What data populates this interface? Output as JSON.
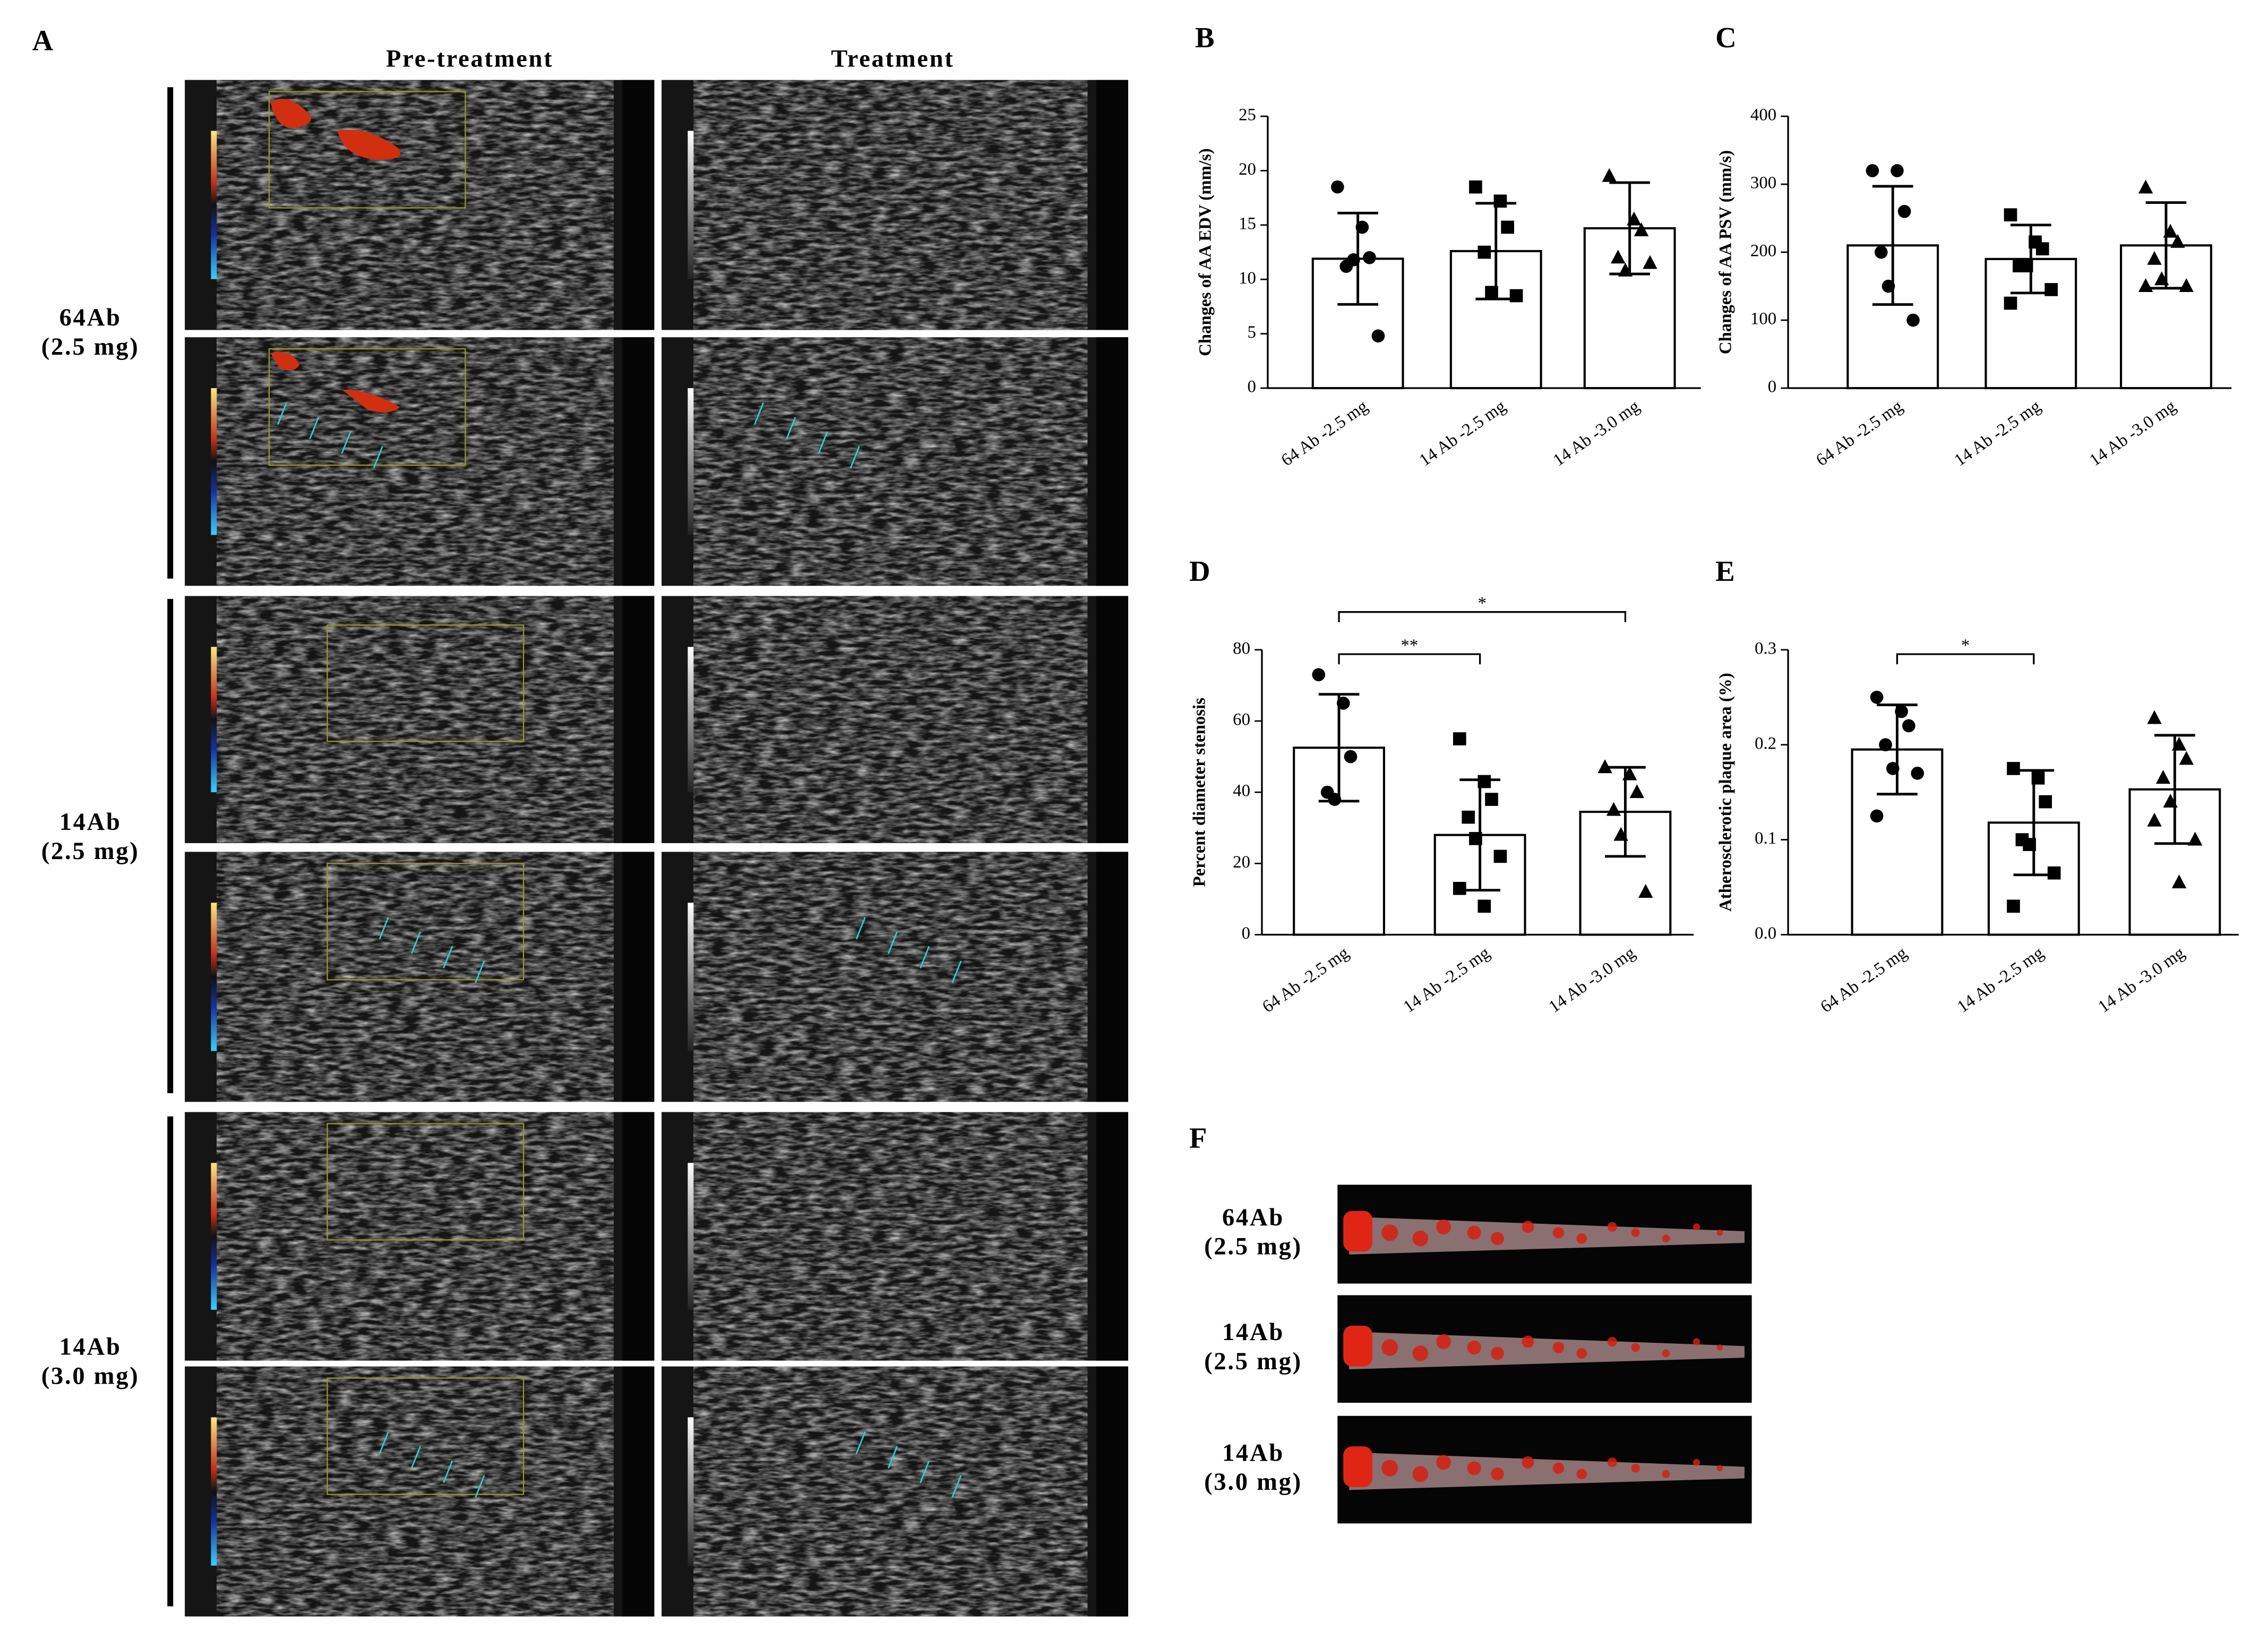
{
  "figure": {
    "panel_a": {
      "label": "A",
      "columns": [
        "Pre-treatment",
        "Treatment"
      ],
      "rows": [
        [
          "64Ab",
          "(2.5 mg)"
        ],
        [
          "14Ab",
          "(2.5 mg)"
        ],
        [
          "14Ab",
          "(3.0 mg)"
        ]
      ]
    },
    "panel_f": {
      "label": "F",
      "rows": [
        [
          "64Ab",
          "(2.5 mg)"
        ],
        [
          "14Ab",
          "(2.5 mg)"
        ],
        [
          "14Ab",
          "(3.0 mg)"
        ]
      ]
    }
  },
  "chart_data": [
    {
      "type": "bar",
      "panel": "B",
      "ylabel": "Changes of AA EDV (mm/s)",
      "categories": [
        "64 Ab -2.5 mg",
        "14 Ab -2.5 mg",
        "14 Ab -3.0 mg"
      ],
      "values": [
        11.9,
        12.6,
        14.7
      ],
      "errors": [
        4.2,
        4.4,
        4.2
      ],
      "points": [
        [
          18.5,
          14.8,
          12.0,
          11.2,
          11.8,
          4.8
        ],
        [
          18.5,
          17.2,
          14.8,
          12.5,
          8.8,
          8.5
        ],
        [
          19.5,
          15.5,
          14.5,
          12.0,
          10.8,
          11.5
        ]
      ],
      "ylim": [
        0,
        25
      ],
      "yticks": [
        0,
        5,
        10,
        15,
        20,
        25
      ]
    },
    {
      "type": "bar",
      "panel": "C",
      "ylabel": "Changes of AA PSV (mm/s)",
      "categories": [
        "64 Ab -2.5 mg",
        "14 Ab -2.5 mg",
        "14 Ab -3.0 mg"
      ],
      "values": [
        210,
        190,
        210
      ],
      "errors": [
        87,
        50,
        63
      ],
      "points": [
        [
          320,
          320,
          260,
          200,
          150,
          100
        ],
        [
          255,
          215,
          205,
          180,
          180,
          145,
          125
        ],
        [
          295,
          230,
          215,
          190,
          160,
          150,
          150
        ]
      ],
      "ylim": [
        0,
        400
      ],
      "yticks": [
        0,
        100,
        200,
        300,
        400
      ]
    },
    {
      "type": "bar",
      "panel": "D",
      "ylabel": "Percent diameter stenosis",
      "categories": [
        "64 Ab -2.5 mg",
        "14 Ab -2.5 mg",
        "14 Ab -3.0 mg"
      ],
      "values": [
        52.5,
        28,
        34.5
      ],
      "errors": [
        15,
        15.5,
        12.5
      ],
      "points": [
        [
          73,
          65,
          50,
          40,
          38
        ],
        [
          55,
          43,
          38,
          33,
          27,
          22,
          13,
          8
        ],
        [
          47,
          45,
          40,
          35,
          28,
          12
        ]
      ],
      "ylim": [
        0,
        80
      ],
      "yticks": [
        0,
        20,
        40,
        60,
        80
      ],
      "significance": [
        {
          "from": "64 Ab -2.5 mg",
          "to": "14 Ab -2.5 mg",
          "label": "**"
        },
        {
          "from": "64 Ab -2.5 mg",
          "to": "14 Ab -3.0 mg",
          "label": "*"
        }
      ]
    },
    {
      "type": "bar",
      "panel": "E",
      "ylabel": "Atherosclerotic plaque area (%)",
      "categories": [
        "64 Ab -2.5 mg",
        "14 Ab -2.5 mg",
        "14 Ab -3.0 mg"
      ],
      "values": [
        0.195,
        0.118,
        0.153
      ],
      "errors": [
        0.047,
        0.055,
        0.057
      ],
      "points": [
        [
          0.25,
          0.235,
          0.22,
          0.2,
          0.175,
          0.17,
          0.125
        ],
        [
          0.175,
          0.165,
          0.14,
          0.1,
          0.095,
          0.065,
          0.03
        ],
        [
          0.228,
          0.2,
          0.185,
          0.165,
          0.14,
          0.1,
          0.12,
          0.055
        ]
      ],
      "ylim": [
        0,
        0.3
      ],
      "yticks": [
        {
          "value": 0,
          "label": "0.0"
        },
        0.1,
        0.2,
        0.3
      ],
      "significance": [
        {
          "from": "64 Ab -2.5 mg",
          "to": "14 Ab -2.5 mg",
          "label": "*"
        }
      ]
    }
  ]
}
